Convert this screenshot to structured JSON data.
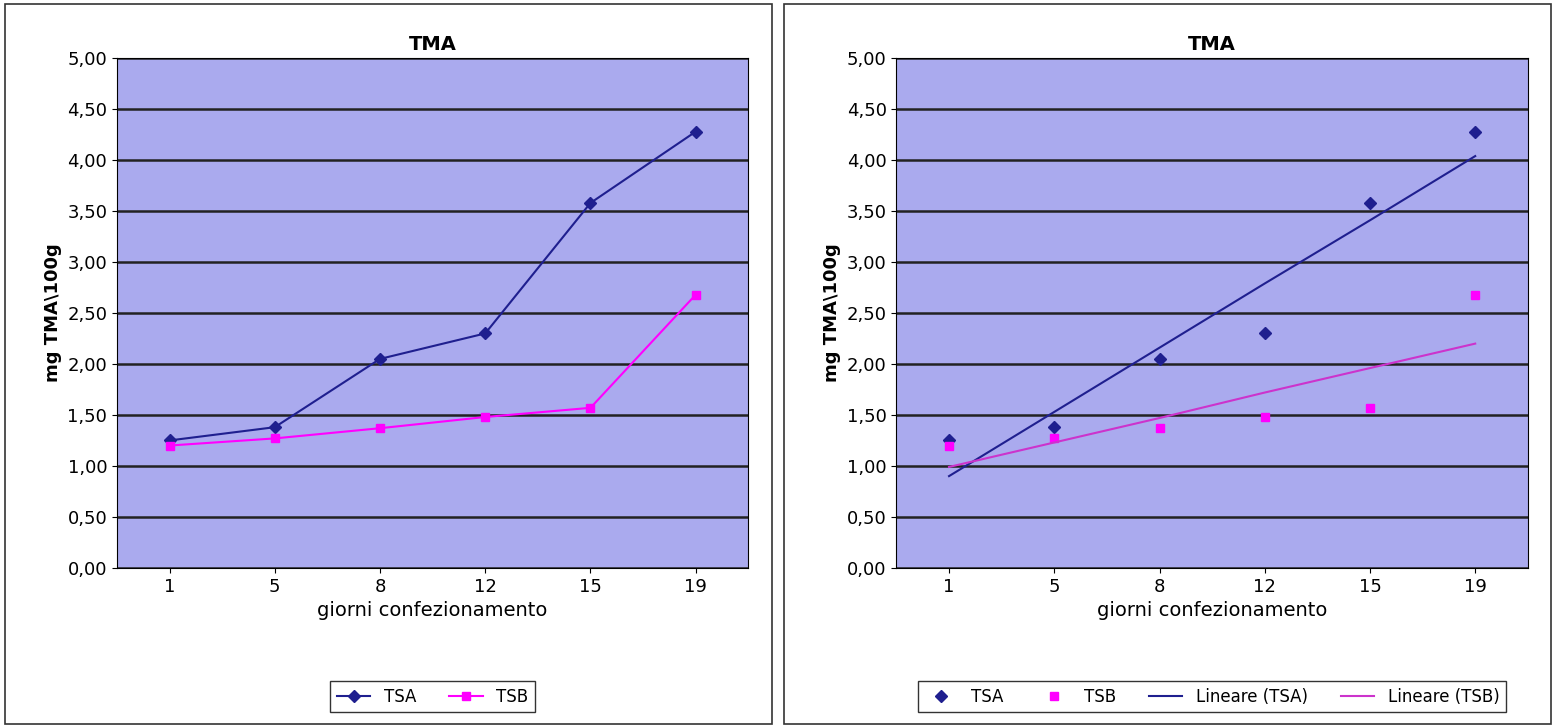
{
  "chart_data": [
    {
      "type": "line",
      "title": "TMA",
      "x_label": "giorni confezionamento",
      "y_label": "mg TMA\\100g",
      "categories": [
        "1",
        "5",
        "8",
        "12",
        "15",
        "19"
      ],
      "ylim": [
        0,
        5
      ],
      "yticks": [
        {
          "value": 0,
          "label": "0,00"
        },
        {
          "value": 0.5,
          "label": "0,50"
        },
        {
          "value": 1,
          "label": "1,00"
        },
        {
          "value": 1.5,
          "label": "1,50"
        },
        {
          "value": 2,
          "label": "2,00"
        },
        {
          "value": 2.5,
          "label": "2,50"
        },
        {
          "value": 3,
          "label": "3,00"
        },
        {
          "value": 3.5,
          "label": "3,50"
        },
        {
          "value": 4,
          "label": "4,00"
        },
        {
          "value": 4.5,
          "label": "4,50"
        },
        {
          "value": 5,
          "label": "5,00"
        }
      ],
      "grid": true,
      "legend": "lower center",
      "series": [
        {
          "name": "TSA",
          "color": "#1f1f8f",
          "marker": "diamond",
          "line_style": "solid",
          "values": [
            1.25,
            1.38,
            2.05,
            2.3,
            3.58,
            4.28
          ]
        },
        {
          "name": "TSB",
          "color": "#ff00ff",
          "marker": "square",
          "line_style": "solid",
          "values": [
            1.2,
            1.27,
            1.37,
            1.48,
            1.57,
            2.68
          ]
        }
      ]
    },
    {
      "type": "scatter",
      "title": "TMA",
      "x_label": "giorni confezionamento",
      "y_label": "mg TMA\\100g",
      "categories": [
        "1",
        "5",
        "8",
        "12",
        "15",
        "19"
      ],
      "ylim": [
        0,
        5
      ],
      "yticks": [
        {
          "value": 0,
          "label": "0,00"
        },
        {
          "value": 0.5,
          "label": "0,50"
        },
        {
          "value": 1,
          "label": "1,00"
        },
        {
          "value": 1.5,
          "label": "1,50"
        },
        {
          "value": 2,
          "label": "2,00"
        },
        {
          "value": 2.5,
          "label": "2,50"
        },
        {
          "value": 3,
          "label": "3,00"
        },
        {
          "value": 3.5,
          "label": "3,50"
        },
        {
          "value": 4,
          "label": "4,00"
        },
        {
          "value": 4.5,
          "label": "4,50"
        },
        {
          "value": 5,
          "label": "5,00"
        }
      ],
      "grid": true,
      "legend": "lower center",
      "series": [
        {
          "name": "TSA",
          "type": "scatter",
          "color": "#1f1f8f",
          "marker": "diamond",
          "values": [
            1.25,
            1.38,
            2.05,
            2.3,
            3.58,
            4.28
          ]
        },
        {
          "name": "TSB",
          "type": "scatter",
          "color": "#ff00ff",
          "marker": "square",
          "values": [
            1.2,
            1.27,
            1.37,
            1.48,
            1.57,
            2.68
          ]
        },
        {
          "name": "Lineare (TSA)",
          "type": "line",
          "color": "#1f1f8f",
          "line_style": "solid",
          "values": [
            0.9,
            1.53,
            2.16,
            2.79,
            3.41,
            4.04
          ]
        },
        {
          "name": "Lineare (TSB)",
          "type": "line",
          "color": "#cc33cc",
          "line_style": "solid",
          "values": [
            0.99,
            1.23,
            1.47,
            1.72,
            1.96,
            2.2
          ]
        }
      ]
    }
  ]
}
